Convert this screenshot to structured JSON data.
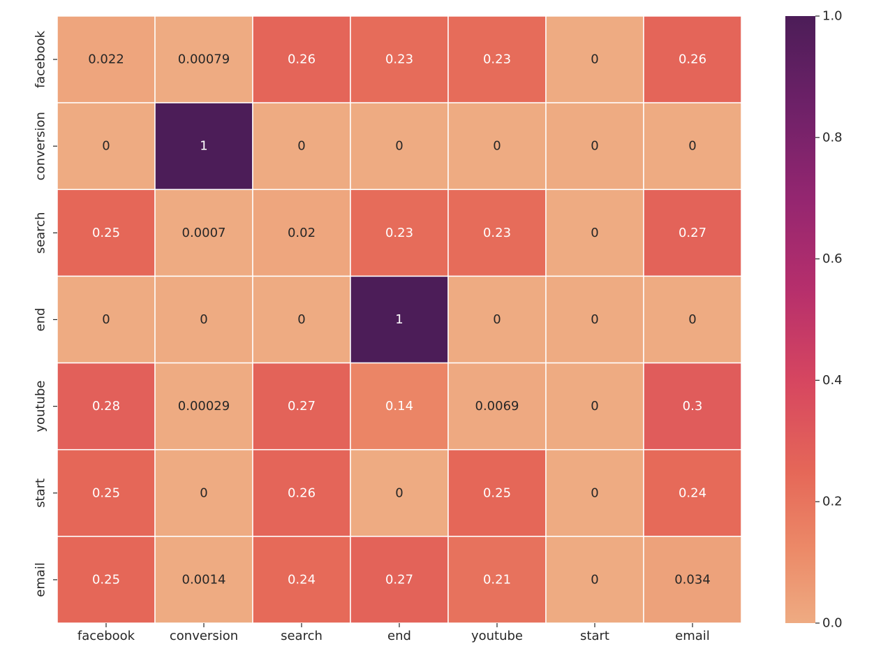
{
  "chart_data": {
    "type": "heatmap",
    "x_categories": [
      "facebook",
      "conversion",
      "search",
      "end",
      "youtube",
      "start",
      "email"
    ],
    "y_categories": [
      "facebook",
      "conversion",
      "search",
      "end",
      "youtube",
      "start",
      "email"
    ],
    "values": [
      [
        0.022,
        0.00079,
        0.26,
        0.23,
        0.23,
        0,
        0.26
      ],
      [
        0,
        1,
        0,
        0,
        0,
        0,
        0
      ],
      [
        0.25,
        0.0007,
        0.02,
        0.23,
        0.23,
        0,
        0.27
      ],
      [
        0,
        0,
        0,
        1,
        0,
        0,
        0
      ],
      [
        0.28,
        0.00029,
        0.27,
        0.14,
        0.0069,
        0,
        0.3
      ],
      [
        0.25,
        0,
        0.26,
        0,
        0.25,
        0,
        0.24
      ],
      [
        0.25,
        0.0014,
        0.24,
        0.27,
        0.21,
        0,
        0.034
      ]
    ],
    "annotations": [
      [
        "0.022",
        "0.00079",
        "0.26",
        "0.23",
        "0.23",
        "0",
        "0.26"
      ],
      [
        "0",
        "1",
        "0",
        "0",
        "0",
        "0",
        "0"
      ],
      [
        "0.25",
        "0.0007",
        "0.02",
        "0.23",
        "0.23",
        "0",
        "0.27"
      ],
      [
        "0",
        "0",
        "0",
        "1",
        "0",
        "0",
        "0"
      ],
      [
        "0.28",
        "0.00029",
        "0.27",
        "0.14",
        "0.0069",
        "0",
        "0.3"
      ],
      [
        "0.25",
        "0",
        "0.26",
        "0",
        "0.25",
        "0",
        "0.24"
      ],
      [
        "0.25",
        "0.0014",
        "0.24",
        "0.27",
        "0.21",
        "0",
        "0.034"
      ]
    ],
    "colorbar": {
      "range": [
        0,
        1
      ],
      "ticks": [
        0.0,
        0.2,
        0.4,
        0.6,
        0.8,
        1.0
      ],
      "tick_labels": [
        "0.0",
        "0.2",
        "0.4",
        "0.6",
        "0.8",
        "1.0"
      ]
    },
    "colormap": "flare",
    "grid_line_color": "#ffffff",
    "title": "",
    "xlabel": "",
    "ylabel": ""
  }
}
